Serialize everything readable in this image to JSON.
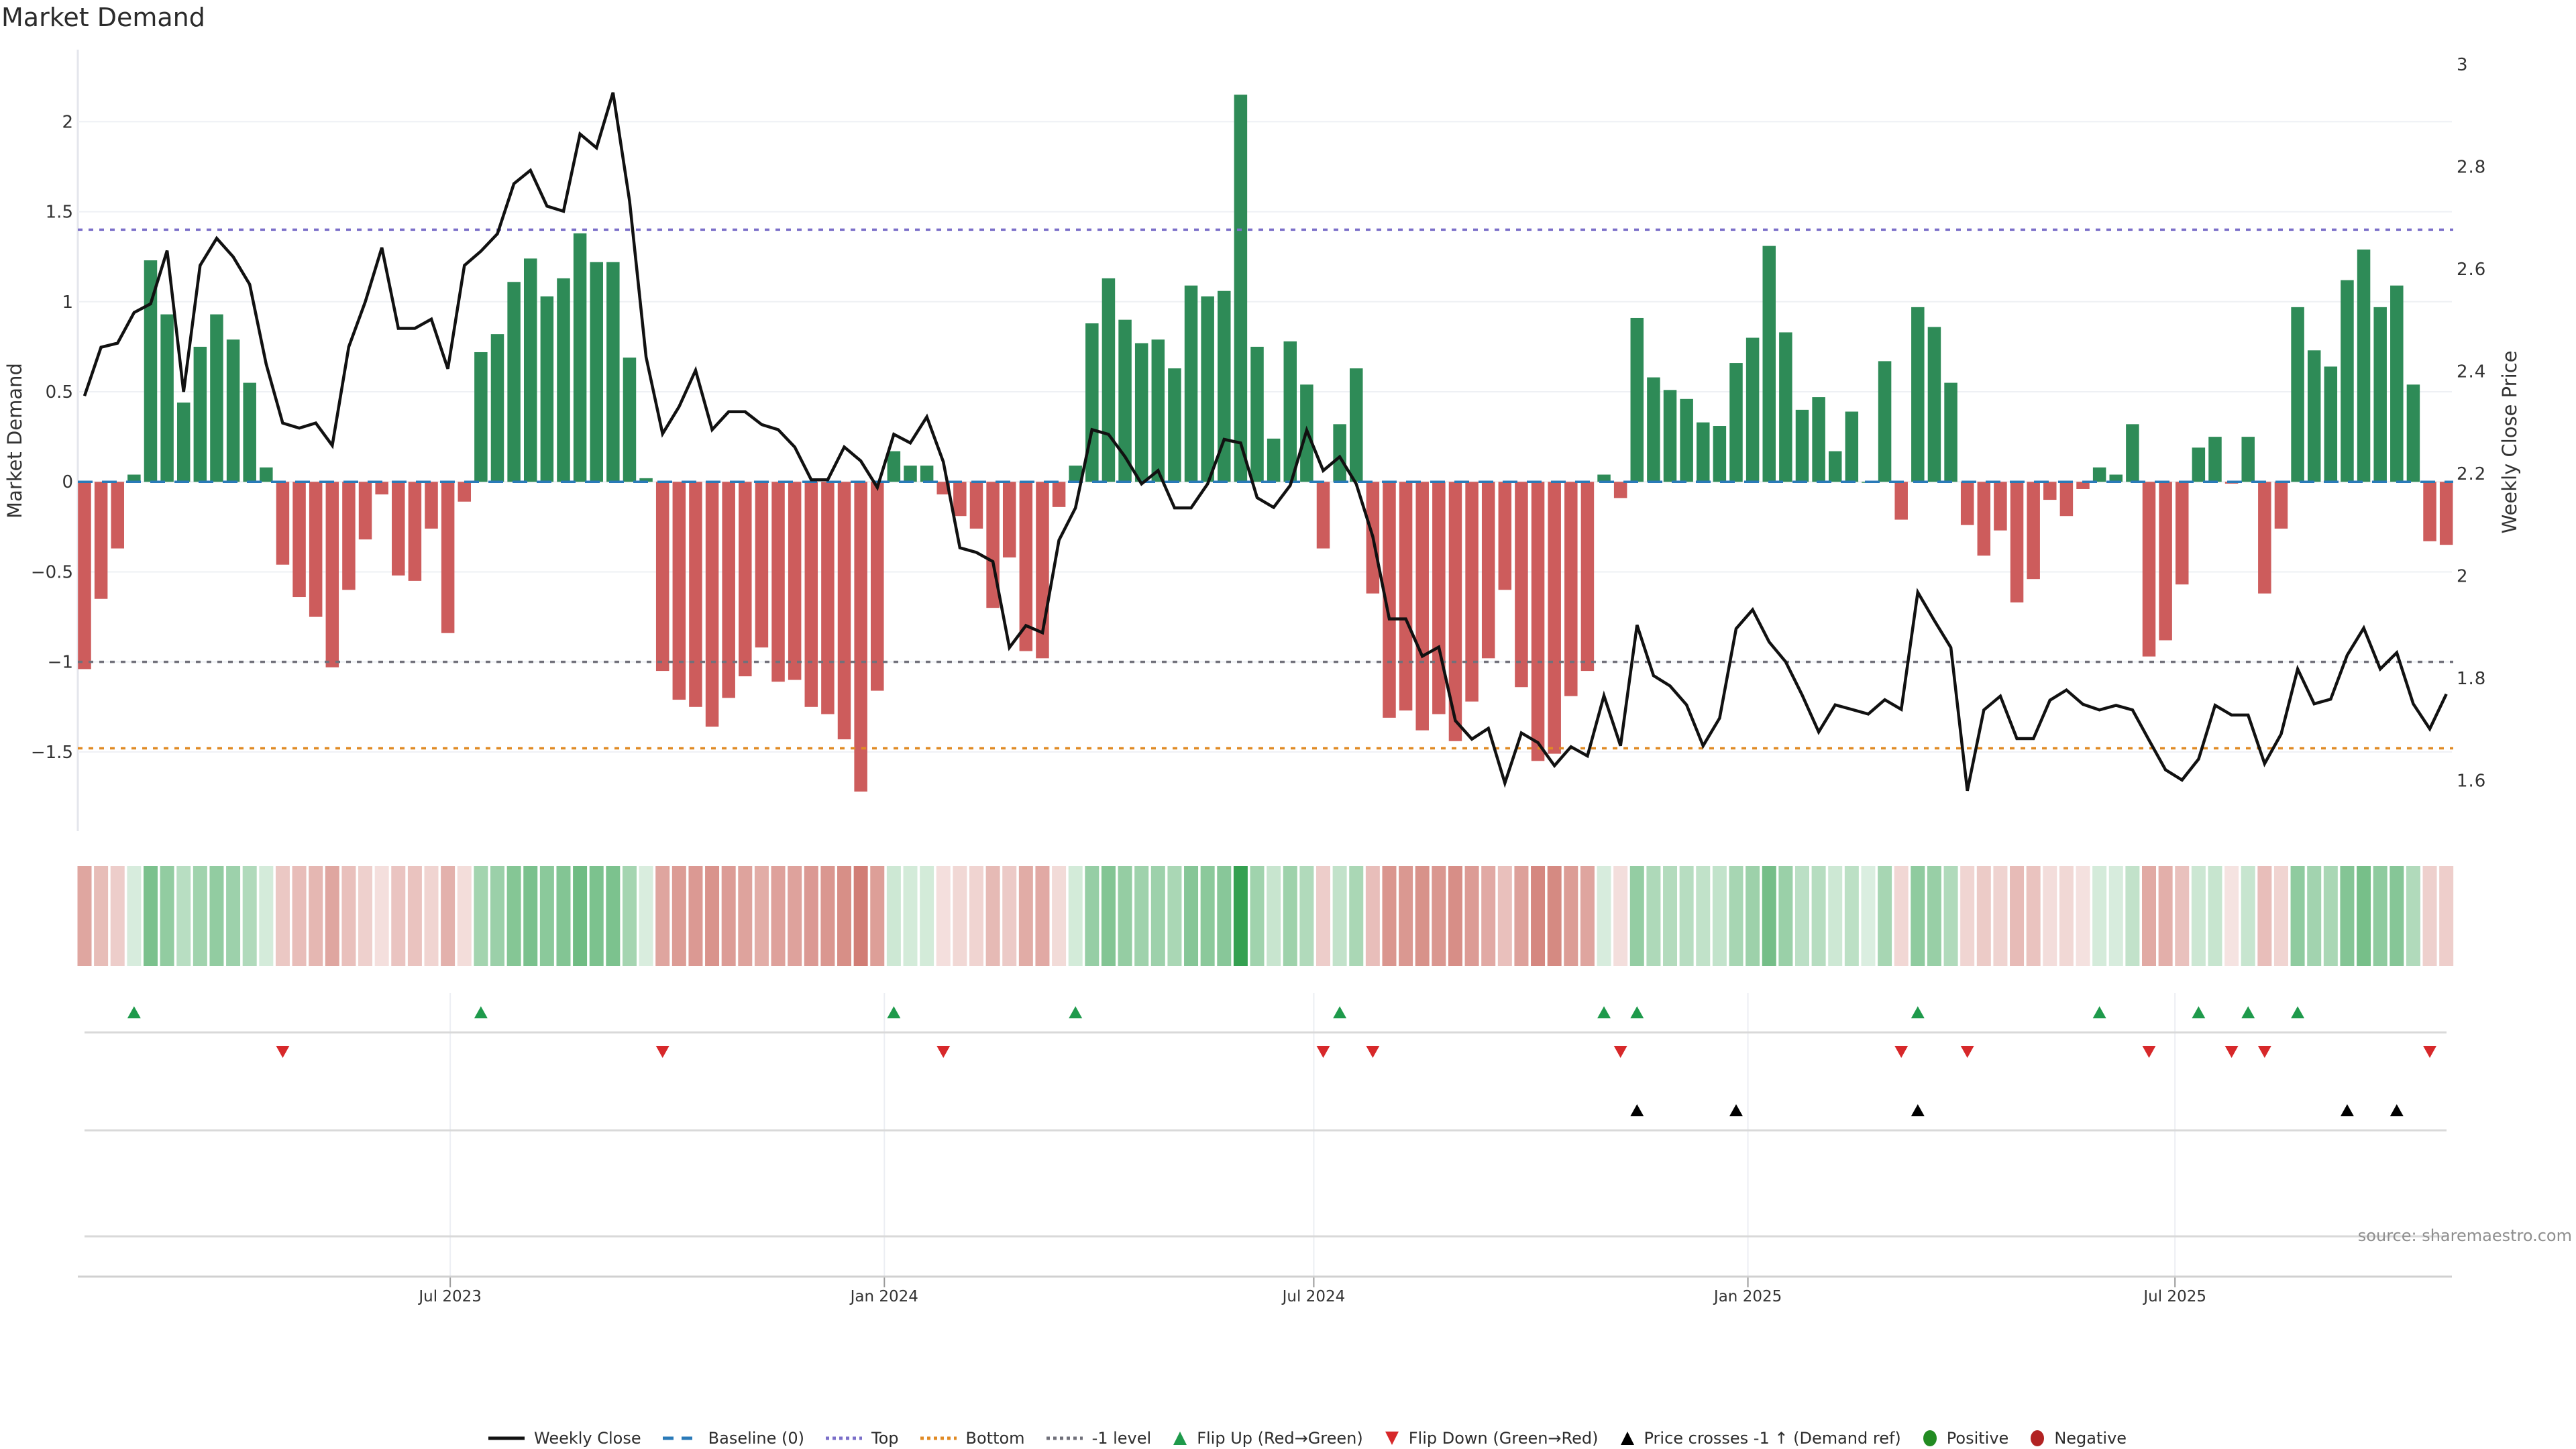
{
  "chart_data": {
    "type": "bar+line",
    "title": "Market Demand",
    "ylabel": "Market Demand",
    "y2label": "Weekly Close Price",
    "x_start": "2023-01-27",
    "x_step_days": 7,
    "ylim": [
      -1.94,
      2.4
    ],
    "y2lim": [
      1.501,
      3.029
    ],
    "grid": true,
    "yticks": [
      {
        "value": 2,
        "label": "2"
      },
      {
        "value": 1.5,
        "label": "1.5"
      },
      {
        "value": 1,
        "label": "1"
      },
      {
        "value": 0.5,
        "label": "0.5"
      },
      {
        "value": 0,
        "label": "0"
      },
      {
        "value": -0.5,
        "label": "−0.5"
      },
      {
        "value": -1,
        "label": "−1"
      },
      {
        "value": -1.5,
        "label": "−1.5"
      }
    ],
    "y2ticks": [
      {
        "value": 3,
        "label": "3"
      },
      {
        "value": 2.8,
        "label": "2.8"
      },
      {
        "value": 2.6,
        "label": "2.6"
      },
      {
        "value": 2.4,
        "label": "2.4"
      },
      {
        "value": 2.2,
        "label": "2.2"
      },
      {
        "value": 2,
        "label": "2"
      },
      {
        "value": 1.8,
        "label": "1.8"
      },
      {
        "value": 1.6,
        "label": "1.6"
      }
    ],
    "xticks": [
      {
        "date": "2023-07-01",
        "label": "Jul 2023"
      },
      {
        "date": "2024-01-01",
        "label": "Jan 2024"
      },
      {
        "date": "2024-07-01",
        "label": "Jul 2024"
      },
      {
        "date": "2025-01-01",
        "label": "Jan 2025"
      },
      {
        "date": "2025-07-01",
        "label": "Jul 2025"
      }
    ],
    "reference_lines": {
      "baseline": 0,
      "top": 1.4,
      "bottom": -1.48,
      "minus_one": -1
    },
    "series": [
      {
        "name": "Market Demand",
        "type": "bar",
        "axis": "left",
        "values": [
          -1.04,
          -0.65,
          -0.37,
          0.04,
          1.23,
          0.93,
          0.44,
          0.75,
          0.93,
          0.79,
          0.55,
          0.08,
          -0.46,
          -0.64,
          -0.75,
          -1.03,
          -0.6,
          -0.32,
          -0.07,
          -0.52,
          -0.55,
          -0.26,
          -0.84,
          -0.11,
          0.72,
          0.82,
          1.11,
          1.24,
          1.03,
          1.13,
          1.38,
          1.22,
          1.22,
          0.69,
          0.02,
          -1.05,
          -1.21,
          -1.25,
          -1.36,
          -1.2,
          -1.08,
          -0.92,
          -1.11,
          -1.1,
          -1.25,
          -1.29,
          -1.43,
          -1.72,
          -1.16,
          0.17,
          0.09,
          0.09,
          -0.07,
          -0.19,
          -0.26,
          -0.7,
          -0.42,
          -0.94,
          -0.98,
          -0.14,
          0.09,
          0.88,
          1.13,
          0.9,
          0.77,
          0.79,
          0.63,
          1.09,
          1.03,
          1.06,
          2.15,
          0.75,
          0.24,
          0.78,
          0.54,
          -0.37,
          0.32,
          0.63,
          -0.62,
          -1.31,
          -1.27,
          -1.38,
          -1.29,
          -1.44,
          -1.22,
          -0.98,
          -0.6,
          -1.14,
          -1.55,
          -1.51,
          -1.19,
          -1.05,
          0.04,
          -0.09,
          0.91,
          0.58,
          0.51,
          0.46,
          0.33,
          0.31,
          0.66,
          0.8,
          1.31,
          0.83,
          0.4,
          0.47,
          0.17,
          0.39,
          0.0,
          0.67,
          -0.21,
          0.97,
          0.86,
          0.55,
          -0.24,
          -0.41,
          -0.27,
          -0.67,
          -0.54,
          -0.1,
          -0.19,
          -0.04,
          0.08,
          0.04,
          0.32,
          -0.97,
          -0.88,
          -0.57,
          0.19,
          0.25,
          -0.01,
          0.25,
          -0.62,
          -0.26,
          0.97,
          0.73,
          0.64,
          1.12,
          1.29,
          0.97,
          1.09,
          0.54,
          -0.33,
          -0.35
        ]
      },
      {
        "name": "Weekly Close",
        "type": "line",
        "axis": "right",
        "values": [
          2.352,
          2.447,
          2.455,
          2.515,
          2.532,
          2.636,
          2.36,
          2.607,
          2.66,
          2.624,
          2.57,
          2.414,
          2.299,
          2.289,
          2.299,
          2.255,
          2.448,
          2.536,
          2.642,
          2.484,
          2.484,
          2.502,
          2.405,
          2.607,
          2.635,
          2.669,
          2.767,
          2.793,
          2.723,
          2.713,
          2.864,
          2.837,
          2.945,
          2.733,
          2.428,
          2.278,
          2.331,
          2.402,
          2.286,
          2.321,
          2.321,
          2.296,
          2.286,
          2.252,
          2.188,
          2.188,
          2.252,
          2.225,
          2.173,
          2.277,
          2.26,
          2.311,
          2.223,
          2.055,
          2.046,
          2.028,
          1.86,
          1.903,
          1.889,
          2.07,
          2.133,
          2.286,
          2.277,
          2.233,
          2.18,
          2.206,
          2.133,
          2.133,
          2.18,
          2.267,
          2.26,
          2.153,
          2.134,
          2.177,
          2.285,
          2.206,
          2.233,
          2.18,
          2.077,
          1.916,
          1.916,
          1.843,
          1.861,
          1.717,
          1.681,
          1.702,
          1.595,
          1.693,
          1.674,
          1.629,
          1.666,
          1.648,
          1.766,
          1.668,
          1.904,
          1.805,
          1.785,
          1.748,
          1.668,
          1.722,
          1.897,
          1.934,
          1.871,
          1.832,
          1.767,
          1.695,
          1.748,
          1.739,
          1.73,
          1.758,
          1.739,
          1.968,
          1.913,
          1.86,
          1.58,
          1.738,
          1.765,
          1.682,
          1.682,
          1.757,
          1.777,
          1.749,
          1.738,
          1.747,
          1.738,
          1.679,
          1.621,
          1.601,
          1.642,
          1.747,
          1.728,
          1.728,
          1.633,
          1.691,
          1.818,
          1.75,
          1.759,
          1.845,
          1.898,
          1.818,
          1.85,
          1.75,
          1.701,
          1.769
        ]
      }
    ],
    "markers": {
      "flip_up_week_index": [
        3,
        24,
        49,
        60,
        76,
        92,
        94,
        111,
        122,
        128,
        131,
        134
      ],
      "flip_down_week_index": [
        12,
        35,
        52,
        75,
        78,
        93,
        110,
        114,
        125,
        130,
        132,
        142
      ],
      "price_cross_up_week_index": [
        94,
        100,
        111,
        137,
        140
      ]
    },
    "colors": {
      "positive_bar": "#2e8b57",
      "negative_bar": "#cd5c5c",
      "heat_positive": "#34a050",
      "heat_negative": "#c8645a",
      "price_line": "#111111",
      "baseline": "#2a7ab8",
      "top": "#7b6fc9",
      "bottom": "#e08a24",
      "minus_one": "#70707a",
      "flip_up": "#1e9a4b",
      "flip_down": "#d7282a",
      "price_cross": "#000000"
    },
    "legend_position": "bottom",
    "legend": [
      {
        "label": "Weekly Close",
        "symbol": "solid",
        "color": "#111111"
      },
      {
        "label": "Baseline (0)",
        "symbol": "dash",
        "color": "#2a7ab8"
      },
      {
        "label": "Top",
        "symbol": "dot",
        "color": "#7b6fc9"
      },
      {
        "label": "Bottom",
        "symbol": "dot",
        "color": "#e08a24"
      },
      {
        "label": "-1 level",
        "symbol": "dot",
        "color": "#70707a"
      },
      {
        "label": "Flip Up (Red→Green)",
        "symbol": "triangle-up",
        "color": "#1e9a4b"
      },
      {
        "label": "Flip Down (Green→Red)",
        "symbol": "triangle-down",
        "color": "#d7282a"
      },
      {
        "label": "Price crosses -1 ↑ (Demand ref)",
        "symbol": "triangle-up",
        "color": "#000000"
      },
      {
        "label": "Positive",
        "symbol": "circle",
        "color": "#228b22"
      },
      {
        "label": "Negative",
        "symbol": "circle",
        "color": "#b22222"
      }
    ],
    "source": "source: sharemaestro.com"
  }
}
